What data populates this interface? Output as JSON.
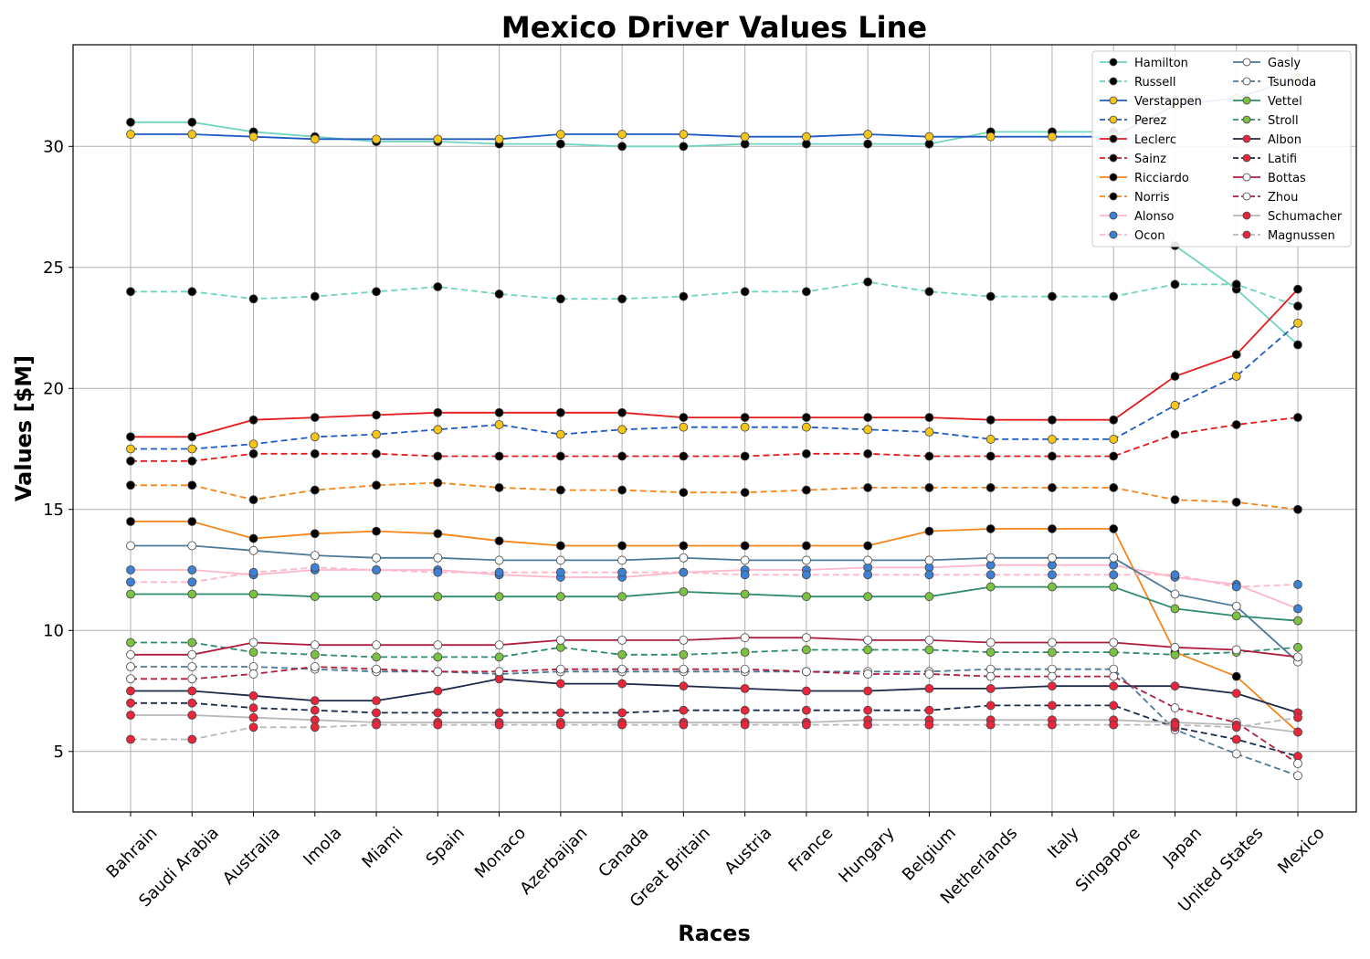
{
  "chart_data": {
    "type": "line",
    "title": "Mexico Driver Values Line",
    "xlabel": "Races",
    "ylabel": "Values [$M]",
    "ylim": [
      2.5,
      34.2
    ],
    "yticks": [
      5,
      10,
      15,
      20,
      25,
      30
    ],
    "grid": true,
    "legend_placement": "top-right",
    "categories": [
      "Bahrain",
      "Saudi Arabia",
      "Australia",
      "Imola",
      "Miami",
      "Spain",
      "Monaco",
      "Azerbaijan",
      "Canada",
      "Great Britain",
      "Austria",
      "France",
      "Hungary",
      "Belgium",
      "Netherlands",
      "Italy",
      "Singapore",
      "Japan",
      "United States",
      "Mexico"
    ],
    "series": [
      {
        "name": "Hamilton",
        "color": "#6fd4c0",
        "dash": "solid",
        "marker": "#000000",
        "values": [
          31.0,
          31.0,
          30.6,
          30.4,
          30.2,
          30.2,
          30.1,
          30.1,
          30.0,
          30.0,
          30.1,
          30.1,
          30.1,
          30.1,
          30.6,
          30.6,
          30.6,
          25.9,
          24.1,
          21.8
        ]
      },
      {
        "name": "Russell",
        "color": "#6fd4c0",
        "dash": "dashed",
        "marker": "#000000",
        "values": [
          24.0,
          24.0,
          23.7,
          23.8,
          24.0,
          24.2,
          23.9,
          23.7,
          23.7,
          23.8,
          24.0,
          24.0,
          24.4,
          24.0,
          23.8,
          23.8,
          23.8,
          24.3,
          24.3,
          23.4
        ]
      },
      {
        "name": "Verstappen",
        "color": "#1f5bc4",
        "dash": "solid",
        "marker": "#f5c518",
        "values": [
          30.5,
          30.5,
          30.4,
          30.3,
          30.3,
          30.3,
          30.3,
          30.5,
          30.5,
          30.5,
          30.4,
          30.4,
          30.5,
          30.4,
          30.4,
          30.4,
          30.4,
          31.7,
          32.0,
          32.8
        ]
      },
      {
        "name": "Perez",
        "color": "#1f5bc4",
        "dash": "dashed",
        "marker": "#f5c518",
        "values": [
          17.5,
          17.5,
          17.7,
          18.0,
          18.1,
          18.3,
          18.5,
          18.1,
          18.3,
          18.4,
          18.4,
          18.4,
          18.3,
          18.2,
          17.9,
          17.9,
          17.9,
          19.3,
          20.5,
          22.7
        ]
      },
      {
        "name": "Leclerc",
        "color": "#e41a1c",
        "dash": "solid",
        "marker": "#000000",
        "values": [
          18.0,
          18.0,
          18.7,
          18.8,
          18.9,
          19.0,
          19.0,
          19.0,
          19.0,
          18.8,
          18.8,
          18.8,
          18.8,
          18.8,
          18.7,
          18.7,
          18.7,
          20.5,
          21.4,
          24.1
        ]
      },
      {
        "name": "Sainz",
        "color": "#e41a1c",
        "dash": "dashed",
        "marker": "#000000",
        "values": [
          17.0,
          17.0,
          17.3,
          17.3,
          17.3,
          17.2,
          17.2,
          17.2,
          17.2,
          17.2,
          17.2,
          17.3,
          17.3,
          17.2,
          17.2,
          17.2,
          17.2,
          18.1,
          18.5,
          18.8
        ]
      },
      {
        "name": "Ricciardo",
        "color": "#f58518",
        "dash": "solid",
        "marker": "#000000",
        "values": [
          14.5,
          14.5,
          13.8,
          14.0,
          14.1,
          14.0,
          13.7,
          13.5,
          13.5,
          13.5,
          13.5,
          13.5,
          13.5,
          14.1,
          14.2,
          14.2,
          14.2,
          9.1,
          8.1,
          5.8
        ]
      },
      {
        "name": "Norris",
        "color": "#f58518",
        "dash": "dashed",
        "marker": "#000000",
        "values": [
          16.0,
          16.0,
          15.4,
          15.8,
          16.0,
          16.1,
          15.9,
          15.8,
          15.8,
          15.7,
          15.7,
          15.8,
          15.9,
          15.9,
          15.9,
          15.9,
          15.9,
          15.4,
          15.3,
          15.0
        ]
      },
      {
        "name": "Alonso",
        "color": "#ffb6c8",
        "dash": "solid",
        "marker": "#3b82d6",
        "values": [
          12.5,
          12.5,
          12.3,
          12.5,
          12.5,
          12.5,
          12.3,
          12.2,
          12.2,
          12.4,
          12.5,
          12.5,
          12.6,
          12.6,
          12.7,
          12.7,
          12.7,
          12.2,
          11.9,
          10.9
        ]
      },
      {
        "name": "Ocon",
        "color": "#ffb6c8",
        "dash": "dashed",
        "marker": "#3b82d6",
        "values": [
          12.0,
          12.0,
          12.4,
          12.6,
          12.5,
          12.4,
          12.4,
          12.4,
          12.4,
          12.4,
          12.3,
          12.3,
          12.3,
          12.3,
          12.3,
          12.3,
          12.3,
          12.3,
          11.8,
          11.9
        ]
      },
      {
        "name": "Gasly",
        "color": "#4c7a99",
        "dash": "solid",
        "marker": "#ffffff",
        "values": [
          13.5,
          13.5,
          13.3,
          13.1,
          13.0,
          13.0,
          12.9,
          12.9,
          12.9,
          13.0,
          12.9,
          12.9,
          12.9,
          12.9,
          13.0,
          13.0,
          13.0,
          11.5,
          11.0,
          8.7
        ]
      },
      {
        "name": "Tsunoda",
        "color": "#4c7a99",
        "dash": "dashed",
        "marker": "#ffffff",
        "values": [
          8.5,
          8.5,
          8.5,
          8.4,
          8.3,
          8.3,
          8.2,
          8.3,
          8.3,
          8.3,
          8.3,
          8.3,
          8.3,
          8.3,
          8.4,
          8.4,
          8.4,
          5.9,
          4.9,
          4.0
        ]
      },
      {
        "name": "Vettel",
        "color": "#2e8b6b",
        "dash": "solid",
        "marker": "#7dc142",
        "values": [
          11.5,
          11.5,
          11.5,
          11.4,
          11.4,
          11.4,
          11.4,
          11.4,
          11.4,
          11.6,
          11.5,
          11.4,
          11.4,
          11.4,
          11.8,
          11.8,
          11.8,
          10.9,
          10.6,
          10.4
        ]
      },
      {
        "name": "Stroll",
        "color": "#2e8b6b",
        "dash": "dashed",
        "marker": "#7dc142",
        "values": [
          9.5,
          9.5,
          9.1,
          9.0,
          8.9,
          8.9,
          8.9,
          9.3,
          9.0,
          9.0,
          9.1,
          9.2,
          9.2,
          9.2,
          9.1,
          9.1,
          9.1,
          9.0,
          9.1,
          9.3
        ]
      },
      {
        "name": "Albon",
        "color": "#1b2a4a",
        "dash": "solid",
        "marker": "#e8263b",
        "values": [
          7.5,
          7.5,
          7.3,
          7.1,
          7.1,
          7.5,
          8.0,
          7.8,
          7.8,
          7.7,
          7.6,
          7.5,
          7.5,
          7.6,
          7.6,
          7.7,
          7.7,
          7.7,
          7.4,
          6.6
        ]
      },
      {
        "name": "Latifi",
        "color": "#1b2a4a",
        "dash": "dashed",
        "marker": "#e8263b",
        "values": [
          7.0,
          7.0,
          6.8,
          6.7,
          6.6,
          6.6,
          6.6,
          6.6,
          6.6,
          6.7,
          6.7,
          6.7,
          6.7,
          6.7,
          6.9,
          6.9,
          6.9,
          6.0,
          5.5,
          4.8
        ]
      },
      {
        "name": "Bottas",
        "color": "#b01e3e",
        "dash": "solid",
        "marker": "#ffffff",
        "values": [
          9.0,
          9.0,
          9.5,
          9.4,
          9.4,
          9.4,
          9.4,
          9.6,
          9.6,
          9.6,
          9.7,
          9.7,
          9.6,
          9.6,
          9.5,
          9.5,
          9.5,
          9.3,
          9.2,
          8.9
        ]
      },
      {
        "name": "Zhou",
        "color": "#b01e3e",
        "dash": "dashed",
        "marker": "#ffffff",
        "values": [
          8.0,
          8.0,
          8.2,
          8.5,
          8.4,
          8.3,
          8.3,
          8.4,
          8.4,
          8.4,
          8.4,
          8.3,
          8.2,
          8.2,
          8.1,
          8.1,
          8.1,
          6.8,
          6.2,
          4.5
        ]
      },
      {
        "name": "Schumacher",
        "color": "#b8b8b8",
        "dash": "solid",
        "marker": "#e8263b",
        "values": [
          6.5,
          6.5,
          6.4,
          6.3,
          6.2,
          6.2,
          6.2,
          6.2,
          6.2,
          6.2,
          6.2,
          6.2,
          6.3,
          6.3,
          6.3,
          6.3,
          6.3,
          6.2,
          6.1,
          5.8
        ]
      },
      {
        "name": "Magnussen",
        "color": "#b8b8b8",
        "dash": "dashed",
        "marker": "#e8263b",
        "values": [
          5.5,
          5.5,
          6.0,
          6.0,
          6.1,
          6.1,
          6.1,
          6.1,
          6.1,
          6.1,
          6.1,
          6.1,
          6.1,
          6.1,
          6.1,
          6.1,
          6.1,
          6.1,
          6.0,
          6.4
        ]
      }
    ]
  }
}
